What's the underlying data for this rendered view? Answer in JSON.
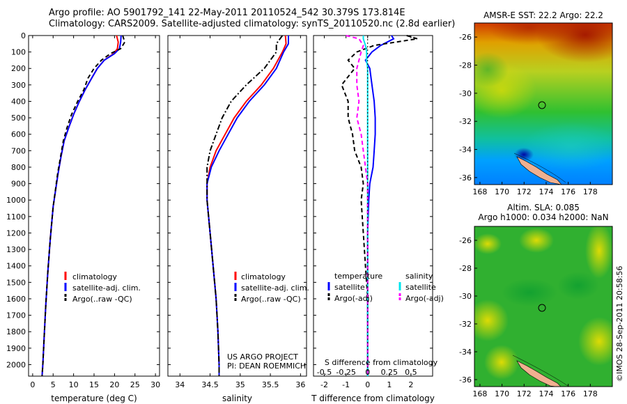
{
  "header": {
    "line1": "Argo profile: AO 5901792_141 22-May-2011 20110524_542 30.379S 173.814E",
    "line2": "Climatology: CARS2009. Satellite-adjusted climatology: synTS_20110520.nc (2.8d earlier)"
  },
  "colors": {
    "climatology": "#ff0000",
    "satellite": "#0000ff",
    "argo": "#000000",
    "salinity_sat": "#00e5ee",
    "salinity_argo": "#ff00ff",
    "frame": "#000000"
  },
  "depth_axis": {
    "ticks": [
      0,
      100,
      200,
      300,
      400,
      500,
      600,
      700,
      800,
      900,
      1000,
      1100,
      1200,
      1300,
      1400,
      1500,
      1600,
      1700,
      1800,
      1900,
      2000
    ],
    "range": [
      0,
      2070
    ]
  },
  "chart_data": [
    {
      "type": "line",
      "id": "temperature",
      "xlabel": "temperature (deg C)",
      "xlim": [
        -1,
        31
      ],
      "xticks": [
        0,
        5,
        10,
        15,
        20,
        25,
        30
      ],
      "legend": [
        "climatology",
        "satellite-adj. clim.",
        "Argo(..raw -QC)"
      ],
      "series": [
        {
          "name": "climatology",
          "style": "solid",
          "color": "#ff0000",
          "x": [
            20.5,
            20.9,
            20.7,
            19.8,
            17.5,
            15.8,
            14.4,
            12.8,
            11.4,
            10.0,
            8.8,
            7.7,
            6.9,
            6.2,
            5.0,
            4.3,
            3.7,
            3.2,
            2.8,
            2.5,
            2.3
          ],
          "y": [
            0,
            40,
            80,
            110,
            150,
            200,
            260,
            330,
            400,
            480,
            560,
            640,
            740,
            840,
            1040,
            1240,
            1440,
            1640,
            1840,
            1990,
            2070
          ]
        },
        {
          "name": "satellite-adj. clim.",
          "style": "solid",
          "color": "#0000ff",
          "x": [
            21.6,
            21.5,
            21.2,
            20.0,
            17.5,
            15.8,
            14.4,
            12.8,
            11.4,
            10.0,
            8.8,
            7.7,
            6.9,
            6.2,
            5.0,
            4.3,
            3.7,
            3.2,
            2.8,
            2.5,
            2.3
          ],
          "y": [
            0,
            40,
            80,
            110,
            150,
            200,
            260,
            330,
            400,
            480,
            560,
            640,
            740,
            840,
            1040,
            1240,
            1440,
            1640,
            1840,
            1990,
            2070
          ]
        },
        {
          "name": "Argo(..raw -QC)",
          "style": "dashed",
          "color": "#000000",
          "x": [
            22.0,
            22.5,
            21.5,
            19.0,
            16.8,
            15.0,
            13.5,
            12.5,
            11.0,
            9.5,
            8.4,
            7.5,
            6.8,
            6.1,
            5.0,
            4.3,
            3.7,
            3.2,
            2.8,
            2.5,
            2.3
          ],
          "y": [
            0,
            40,
            80,
            110,
            150,
            200,
            260,
            330,
            400,
            480,
            560,
            640,
            740,
            840,
            1040,
            1240,
            1440,
            1640,
            1840,
            1990,
            2070
          ]
        }
      ]
    },
    {
      "type": "line",
      "id": "salinity",
      "xlabel": "salinity",
      "xlim": [
        33.8,
        36.1
      ],
      "xticks": [
        34,
        34.5,
        35,
        35.5,
        36
      ],
      "legend": [
        "climatology",
        "satellite-adj. clim.",
        "Argo(..raw -QC)"
      ],
      "notes": [
        "US ARGO PROJECT",
        "PI: DEAN ROEMMICH"
      ],
      "series": [
        {
          "name": "climatology",
          "style": "solid",
          "color": "#ff0000",
          "x": [
            35.75,
            35.76,
            35.7,
            35.55,
            35.35,
            35.1,
            34.9,
            34.75,
            34.6,
            34.5,
            34.45,
            34.45,
            34.5,
            34.55,
            34.6,
            34.63,
            34.65,
            34.65
          ],
          "y": [
            0,
            50,
            100,
            200,
            300,
            400,
            500,
            600,
            700,
            800,
            900,
            1000,
            1200,
            1400,
            1600,
            1800,
            2000,
            2070
          ]
        },
        {
          "name": "satellite-adj. clim.",
          "style": "solid",
          "color": "#0000ff",
          "x": [
            35.8,
            35.8,
            35.72,
            35.6,
            35.4,
            35.15,
            34.95,
            34.8,
            34.65,
            34.52,
            34.45,
            34.45,
            34.5,
            34.55,
            34.6,
            34.63,
            34.65,
            34.65
          ],
          "y": [
            0,
            50,
            100,
            200,
            300,
            400,
            500,
            600,
            700,
            800,
            900,
            1000,
            1200,
            1400,
            1600,
            1800,
            2000,
            2070
          ]
        },
        {
          "name": "Argo(..raw -QC)",
          "style": "dashdot",
          "color": "#000000",
          "x": [
            35.7,
            35.6,
            35.6,
            35.4,
            35.1,
            34.85,
            34.7,
            34.6,
            34.5,
            34.45,
            34.45,
            34.45,
            34.5,
            34.55,
            34.6,
            34.63,
            34.65,
            34.65
          ],
          "y": [
            0,
            50,
            100,
            200,
            300,
            400,
            500,
            600,
            700,
            800,
            900,
            1000,
            1200,
            1400,
            1600,
            1800,
            2000,
            2070
          ]
        }
      ]
    },
    {
      "type": "line",
      "id": "differences",
      "xlabel": "T difference from climatology",
      "xlabel2": "S difference from climatology",
      "xlim": [
        -2.5,
        3.0
      ],
      "xticks": [
        -2,
        -1,
        0,
        1,
        2
      ],
      "xticks_s": [
        "-0.5",
        "-0.25",
        "0",
        "0.25",
        "0.5"
      ],
      "legend_headers": [
        "temperature",
        "salinity"
      ],
      "legend": [
        "satellite",
        "Argo(-adj)",
        "satellite",
        "Argo(-adj)"
      ],
      "series": [
        {
          "name": "satellite",
          "group": "temperature",
          "style": "solid",
          "color": "#0000ff",
          "x": [
            1.1,
            1.2,
            0.6,
            0.2,
            -0.1,
            0.1,
            0.2,
            0.3,
            0.35,
            0.35,
            0.3,
            0.25,
            0.1,
            0.05,
            0,
            0,
            0,
            0,
            0,
            0,
            0
          ],
          "y": [
            0,
            20,
            60,
            100,
            150,
            200,
            300,
            400,
            500,
            600,
            700,
            800,
            900,
            1000,
            1200,
            1400,
            1600,
            1800,
            1900,
            2000,
            2070
          ]
        },
        {
          "name": "Argo(-adj)",
          "group": "temperature",
          "style": "dashed",
          "color": "#000000",
          "x": [
            1.8,
            2.3,
            0.3,
            -0.5,
            -0.9,
            -0.6,
            -1.2,
            -0.9,
            -0.9,
            -0.7,
            -0.6,
            -0.3,
            -0.2,
            -0.3,
            -0.2,
            -0.1,
            0,
            0,
            0,
            0,
            0
          ],
          "y": [
            0,
            20,
            60,
            100,
            150,
            200,
            300,
            400,
            500,
            600,
            700,
            800,
            900,
            1000,
            1200,
            1400,
            1600,
            1800,
            1900,
            2000,
            2070
          ]
        },
        {
          "name": "satellite",
          "group": "salinity",
          "style": "solid",
          "color": "#00e5ee",
          "x": [
            -0.2,
            -0.2,
            -0.1,
            -0.05,
            -0.05,
            0,
            0,
            0,
            0,
            0,
            0,
            0,
            0,
            0,
            0,
            0,
            0,
            0,
            0,
            0,
            0
          ],
          "y": [
            0,
            20,
            60,
            100,
            150,
            200,
            300,
            400,
            500,
            600,
            700,
            800,
            900,
            1000,
            1200,
            1400,
            1600,
            1800,
            1900,
            2000,
            2070
          ]
        },
        {
          "name": "Argo(-adj)",
          "group": "salinity",
          "style": "dashed",
          "color": "#ff00ff",
          "x": [
            -1.0,
            -0.4,
            -0.2,
            -0.3,
            -0.4,
            -0.5,
            -0.5,
            -0.4,
            -0.5,
            -0.3,
            -0.2,
            -0.1,
            0,
            0,
            0,
            0,
            0,
            0,
            0,
            0,
            0
          ],
          "y": [
            0,
            20,
            60,
            100,
            150,
            200,
            300,
            400,
            500,
            600,
            700,
            800,
            900,
            1000,
            1200,
            1400,
            1600,
            1800,
            1900,
            2000,
            2070
          ]
        }
      ]
    },
    {
      "type": "heatmap",
      "id": "sst-map",
      "title": "AMSR-E SST: 22.2  Argo: 22.2",
      "xlim": [
        167.5,
        180
      ],
      "ylim": [
        -36.5,
        -25
      ],
      "xticks": [
        168,
        170,
        172,
        174,
        176,
        178
      ],
      "yticks": [
        -26,
        -28,
        -30,
        -32,
        -34,
        -36
      ],
      "argo_position": {
        "lon": 173.814,
        "lat": -30.379
      }
    },
    {
      "type": "heatmap",
      "id": "sla-map",
      "title_line1": "Altim. SLA: 0.085",
      "title_line2": "Argo h1000: 0.034 h2000: NaN",
      "xlim": [
        167.5,
        180
      ],
      "ylim": [
        -36.5,
        -25
      ],
      "xticks": [
        168,
        170,
        172,
        174,
        176,
        178
      ],
      "yticks": [
        -26,
        -28,
        -30,
        -32,
        -34,
        -36
      ],
      "argo_position": {
        "lon": 173.814,
        "lat": -30.379
      }
    }
  ],
  "credit": "©IMOS 28-Sep-2011 20:58:56"
}
